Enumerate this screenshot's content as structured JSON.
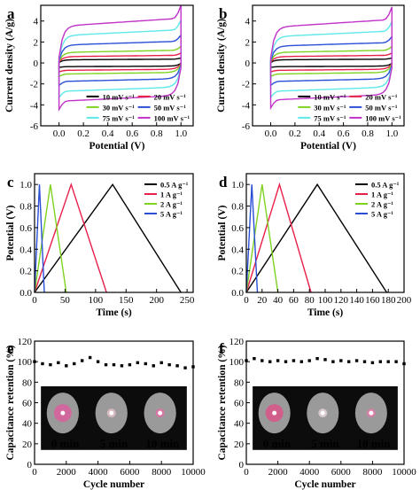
{
  "chart_data": [
    {
      "id": "a",
      "panel_label": "a",
      "type": "line",
      "plot_kind": "cv",
      "xlabel": "Potential (V)",
      "ylabel": "Current density (A/g)",
      "xlim": [
        -0.15,
        1.1
      ],
      "ylim": [
        -6,
        5.5
      ],
      "xticks": [
        0.0,
        0.2,
        0.4,
        0.6,
        0.8,
        1.0
      ],
      "xtick_labels": [
        "0.0",
        "0.2",
        "0.4",
        "0.6",
        "0.8",
        "1.0"
      ],
      "yticks": [
        -6,
        -4,
        -2,
        0,
        2,
        4
      ],
      "ytick_labels": [
        "-6",
        "-4",
        "-2",
        "0",
        "2",
        "4"
      ],
      "legend": {
        "placement": "bottom-right",
        "columns": 2
      },
      "series": [
        {
          "name": "10 mV s⁻¹",
          "color": "#000000",
          "top": 0.3,
          "bottom": -0.3
        },
        {
          "name": "20 mV s⁻¹",
          "color": "#e8204a",
          "top": 0.6,
          "bottom": -0.6
        },
        {
          "name": "30 mV s⁻¹",
          "color": "#7ed321",
          "top": 1.0,
          "bottom": -0.9
        },
        {
          "name": "50 mV s⁻¹",
          "color": "#2a4fd6",
          "top": 1.7,
          "bottom": -1.5
        },
        {
          "name": "75 mV s⁻¹",
          "color": "#5ee8e8",
          "top": 2.6,
          "bottom": -2.3
        },
        {
          "name": "100 mV s⁻¹",
          "color": "#c032c8",
          "top": 3.5,
          "bottom": -3.1
        }
      ]
    },
    {
      "id": "b",
      "panel_label": "b",
      "type": "line",
      "plot_kind": "cv",
      "xlabel": "Potential (V)",
      "ylabel": "Current density (A/g)",
      "xlim": [
        -0.15,
        1.1
      ],
      "ylim": [
        -6,
        5.5
      ],
      "xticks": [
        0.0,
        0.2,
        0.4,
        0.6,
        0.8,
        1.0
      ],
      "xtick_labels": [
        "0.0",
        "0.2",
        "0.4",
        "0.6",
        "0.8",
        "1.0"
      ],
      "yticks": [
        -6,
        -4,
        -2,
        0,
        2,
        4
      ],
      "ytick_labels": [
        "-6",
        "-4",
        "-2",
        "0",
        "2",
        "4"
      ],
      "legend": {
        "placement": "bottom-right",
        "columns": 2
      },
      "series": [
        {
          "name": "10 mV s⁻¹",
          "color": "#000000",
          "top": 0.3,
          "bottom": -0.3
        },
        {
          "name": "20 mV s⁻¹",
          "color": "#e8204a",
          "top": 0.6,
          "bottom": -0.6
        },
        {
          "name": "30 mV s⁻¹",
          "color": "#7ed321",
          "top": 1.0,
          "bottom": -0.9
        },
        {
          "name": "50 mV s⁻¹",
          "color": "#2a4fd6",
          "top": 1.6,
          "bottom": -1.5
        },
        {
          "name": "75 mV s⁻¹",
          "color": "#5ee8e8",
          "top": 2.5,
          "bottom": -2.3
        },
        {
          "name": "100 mV s⁻¹",
          "color": "#c032c8",
          "top": 3.4,
          "bottom": -3.0
        }
      ]
    },
    {
      "id": "c",
      "panel_label": "c",
      "type": "line",
      "plot_kind": "gcd",
      "xlabel": "Time (s)",
      "ylabel": "Potential (V)",
      "xlim": [
        0,
        260
      ],
      "ylim": [
        0,
        1.1
      ],
      "xticks": [
        0,
        50,
        100,
        150,
        200,
        250
      ],
      "xtick_labels": [
        "0",
        "50",
        "100",
        "150",
        "200",
        "250"
      ],
      "yticks": [
        0.0,
        0.2,
        0.4,
        0.6,
        0.8,
        1.0
      ],
      "ytick_labels": [
        "0.0",
        "0.2",
        "0.4",
        "0.6",
        "0.8",
        "1.0"
      ],
      "legend": {
        "placement": "top-right",
        "columns": 1
      },
      "series": [
        {
          "name": "0.5 A g⁻¹",
          "color": "#000000",
          "x": [
            0,
            128,
            240
          ],
          "y": [
            0,
            1.0,
            0
          ]
        },
        {
          "name": "1 A g⁻¹",
          "color": "#e8204a",
          "x": [
            0,
            60,
            118
          ],
          "y": [
            0,
            1.0,
            0
          ]
        },
        {
          "name": "2 A g⁻¹",
          "color": "#7ed321",
          "x": [
            0,
            26,
            52
          ],
          "y": [
            0,
            1.0,
            0
          ]
        },
        {
          "name": "5 A g⁻¹",
          "color": "#2a4fd6",
          "x": [
            0,
            8,
            16
          ],
          "y": [
            0,
            1.0,
            0
          ]
        }
      ]
    },
    {
      "id": "d",
      "panel_label": "d",
      "type": "line",
      "plot_kind": "gcd",
      "xlabel": "Time (s)",
      "ylabel": "Potential (V)",
      "xlim": [
        0,
        200
      ],
      "ylim": [
        0,
        1.1
      ],
      "xticks": [
        0,
        20,
        40,
        60,
        80,
        100,
        120,
        140,
        160,
        180,
        200
      ],
      "xtick_labels": [
        "0",
        "20",
        "40",
        "60",
        "80",
        "100",
        "120",
        "140",
        "160",
        "180",
        "200"
      ],
      "yticks": [
        0.0,
        0.2,
        0.4,
        0.6,
        0.8,
        1.0
      ],
      "ytick_labels": [
        "0.0",
        "0.2",
        "0.4",
        "0.6",
        "0.8",
        "1.0"
      ],
      "legend": {
        "placement": "top-right",
        "columns": 1
      },
      "series": [
        {
          "name": "0.5 A g⁻¹",
          "color": "#000000",
          "x": [
            0,
            90,
            178
          ],
          "y": [
            0,
            1.0,
            0
          ]
        },
        {
          "name": "1 A g⁻¹",
          "color": "#e8204a",
          "x": [
            0,
            42,
            82
          ],
          "y": [
            0,
            1.0,
            0
          ]
        },
        {
          "name": "2 A g⁻¹",
          "color": "#7ed321",
          "x": [
            0,
            20,
            40
          ],
          "y": [
            0,
            1.0,
            0
          ]
        },
        {
          "name": "5 A g⁻¹",
          "color": "#2a4fd6",
          "x": [
            0,
            7,
            14
          ],
          "y": [
            0,
            1.0,
            0
          ]
        }
      ]
    },
    {
      "id": "e",
      "panel_label": "e",
      "type": "scatter",
      "plot_kind": "retention",
      "xlabel": "Cycle number",
      "ylabel": "Capacitance retention (%)",
      "xlim": [
        0,
        10000
      ],
      "ylim": [
        0,
        120
      ],
      "xticks": [
        0,
        2000,
        4000,
        6000,
        8000,
        10000
      ],
      "xtick_labels": [
        "0",
        "2000",
        "4000",
        "6000",
        "8000",
        "10000"
      ],
      "yticks": [
        0,
        20,
        40,
        60,
        80,
        100,
        120
      ],
      "ytick_labels": [
        "0",
        "20",
        "40",
        "60",
        "80",
        "100",
        "120"
      ],
      "series": [
        {
          "color": "#000000",
          "x": [
            0,
            500,
            1000,
            1500,
            2000,
            2500,
            3000,
            3500,
            4000,
            4500,
            5000,
            5500,
            6000,
            6500,
            7000,
            7500,
            8000,
            8500,
            9000,
            9500,
            10000
          ],
          "y": [
            100,
            98,
            97,
            99,
            96,
            98,
            101,
            104,
            100,
            97,
            97,
            96,
            97,
            99,
            98,
            96,
            99,
            97,
            96,
            94,
            95
          ]
        }
      ],
      "inset": {
        "description_labels": [
          "0 min",
          "5 min",
          "10 min"
        ],
        "glow_colors": [
          "#ff3fa0",
          "#ffd0d8",
          "#ff5fa8"
        ]
      }
    },
    {
      "id": "f",
      "panel_label": "f",
      "type": "scatter",
      "plot_kind": "retention",
      "xlabel": "Cycle number",
      "ylabel": "Capacitance retention (%)",
      "xlim": [
        0,
        10000
      ],
      "ylim": [
        0,
        120
      ],
      "xticks": [
        0,
        2000,
        4000,
        6000,
        8000,
        10000
      ],
      "xtick_labels": [
        "0",
        "2000",
        "4000",
        "6000",
        "8000",
        "10000"
      ],
      "yticks": [
        0,
        20,
        40,
        60,
        80,
        100,
        120
      ],
      "ytick_labels": [
        "0",
        "20",
        "40",
        "60",
        "80",
        "100",
        "120"
      ],
      "series": [
        {
          "color": "#000000",
          "x": [
            0,
            500,
            1000,
            1500,
            2000,
            2500,
            3000,
            3500,
            4000,
            4500,
            5000,
            5500,
            6000,
            6500,
            7000,
            7500,
            8000,
            8500,
            9000,
            9500,
            10000
          ],
          "y": [
            101,
            103,
            101,
            100,
            101,
            100,
            101,
            100,
            101,
            103,
            102,
            100,
            101,
            100,
            101,
            100,
            99,
            100,
            100,
            100,
            98
          ]
        }
      ],
      "inset": {
        "description_labels": [
          "0 min",
          "5 min",
          "10 min"
        ],
        "glow_colors": [
          "#ff2f80",
          "#ffe8ee",
          "#ff6fb0"
        ]
      }
    }
  ]
}
